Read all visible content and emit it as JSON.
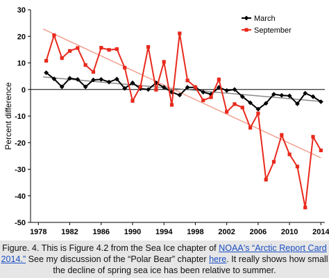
{
  "chart_data": {
    "type": "line",
    "ylabel": "Percent difference",
    "xlim": [
      1977,
      2014.5
    ],
    "ylim": [
      -50,
      30
    ],
    "xticks": [
      1978,
      1982,
      1986,
      1990,
      1994,
      1998,
      2002,
      2006,
      2010,
      2014
    ],
    "yticks": [
      30,
      20,
      10,
      0,
      -10,
      -20,
      -30,
      -40,
      -50
    ],
    "grid": false,
    "legend_position": "top-right",
    "zero_line": true,
    "series": [
      {
        "name": "March",
        "color": "#000000",
        "marker": "diamond",
        "x": [
          1979,
          1980,
          1981,
          1982,
          1983,
          1984,
          1985,
          1986,
          1987,
          1988,
          1989,
          1990,
          1991,
          1992,
          1993,
          1994,
          1995,
          1996,
          1997,
          1998,
          1999,
          2000,
          2001,
          2002,
          2003,
          2004,
          2005,
          2006,
          2007,
          2008,
          2009,
          2010,
          2011,
          2012,
          2013,
          2014
        ],
        "values": [
          6.3,
          4.0,
          1.0,
          4.2,
          3.8,
          1.0,
          3.6,
          3.8,
          2.8,
          3.9,
          0.4,
          2.5,
          0.3,
          0.0,
          2.5,
          0.8,
          -1.0,
          -2.1,
          0.8,
          0.8,
          -1.0,
          -1.8,
          0.8,
          -0.4,
          0.0,
          -2.7,
          -5.0,
          -7.4,
          -5.2,
          -1.8,
          -2.2,
          -2.4,
          -5.4,
          -1.4,
          -2.7,
          -4.6
        ],
        "trend": [
          4.6,
          -4.5
        ]
      },
      {
        "name": "September",
        "color": "#e8291c",
        "marker": "square",
        "x": [
          1979,
          1980,
          1981,
          1982,
          1983,
          1984,
          1985,
          1986,
          1987,
          1988,
          1989,
          1990,
          1991,
          1992,
          1993,
          1994,
          1995,
          1996,
          1997,
          1998,
          1999,
          2000,
          2001,
          2002,
          2003,
          2004,
          2005,
          2006,
          2007,
          2008,
          2009,
          2010,
          2011,
          2012,
          2013,
          2014
        ],
        "values": [
          10.8,
          20.4,
          11.8,
          14.5,
          15.6,
          9.2,
          6.6,
          15.7,
          14.9,
          15.2,
          8.2,
          -4.3,
          1.0,
          16.0,
          -0.1,
          10.4,
          -5.8,
          21.1,
          3.4,
          0.9,
          -4.1,
          -2.9,
          3.8,
          -8.4,
          -5.5,
          -6.8,
          -14.4,
          -9.0,
          -33.9,
          -27.2,
          -17.1,
          -24.4,
          -29.0,
          -44.4,
          -17.8,
          -22.9
        ],
        "trend": [
          22.2,
          -25.7
        ]
      }
    ]
  },
  "caption": {
    "part1": "Figure. 4. This is Figure 4.2 from the Sea Ice chapter of ",
    "link1": "NOAA's “Arctic Report Card 2014.”",
    "part2": " See my discussion of the “Polar Bear” chapter ",
    "link2": "here",
    "part3": ". It really shows how small the decline of spring sea ice has been relative to summer."
  }
}
